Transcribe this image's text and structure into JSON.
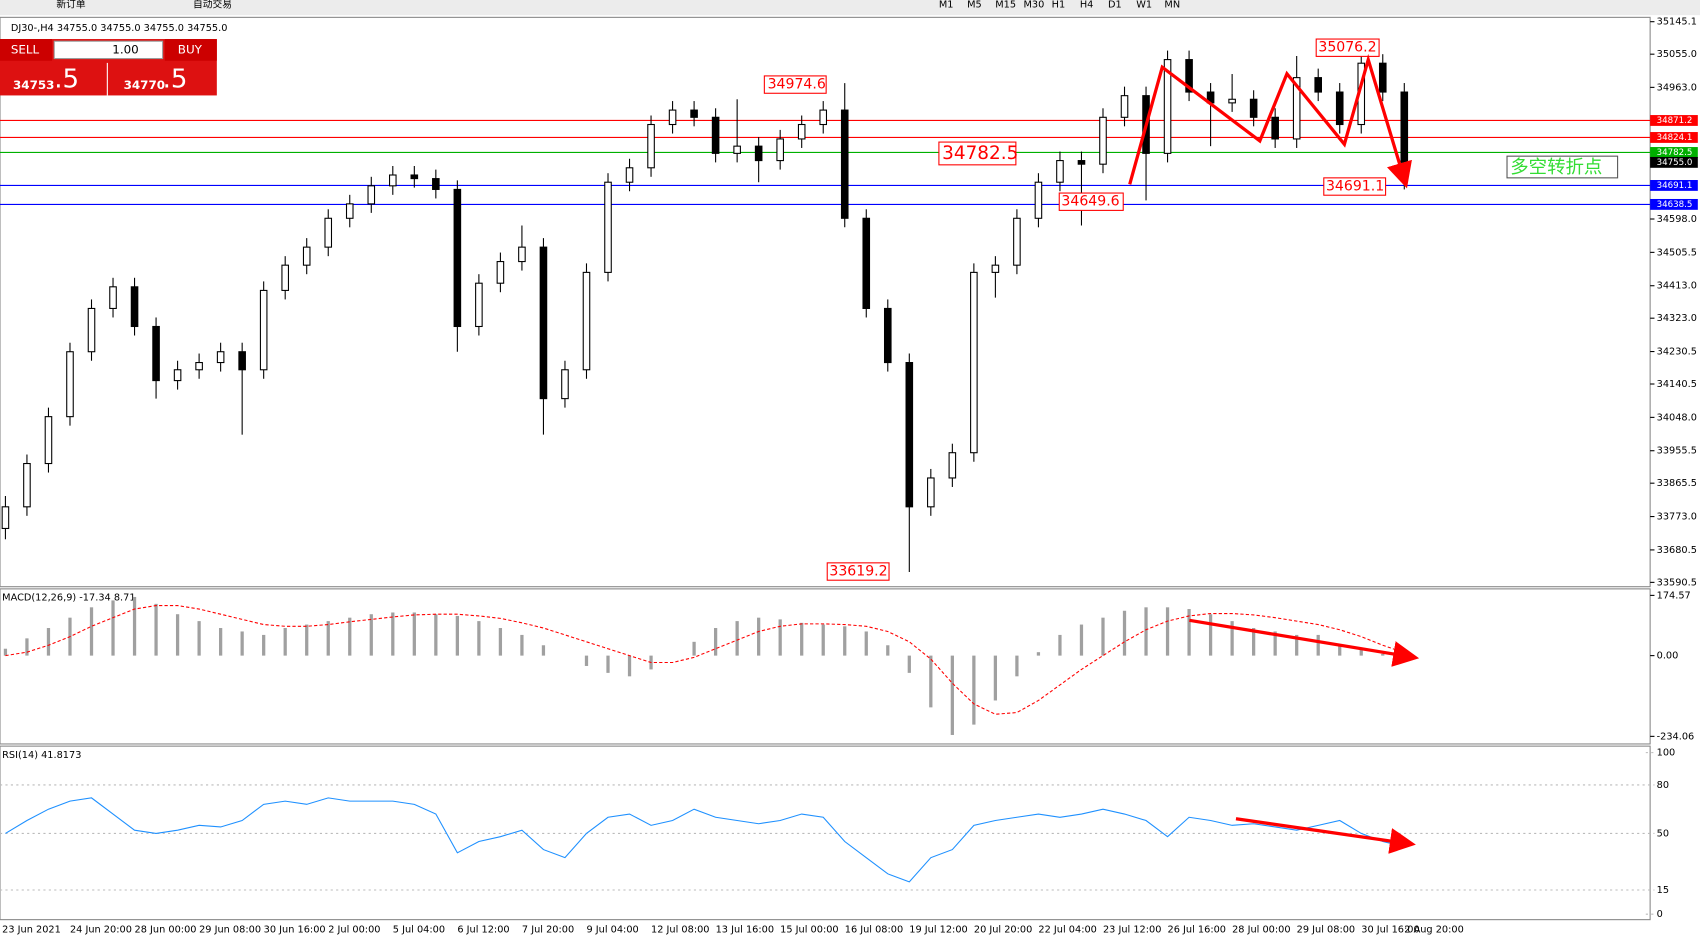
{
  "toolbar": {
    "buttons": [
      "新订单",
      "自动交易"
    ],
    "timeframes": [
      "M1",
      "M5",
      "M15",
      "M30",
      "H1",
      "H4",
      "D1",
      "W1",
      "MN"
    ]
  },
  "trade_panel": {
    "sell": "SELL",
    "buy": "BUY",
    "lots": "1.00",
    "bid_main": "34753",
    "bid_frac": ".5",
    "ask_main": "34770",
    "ask_frac": ".5"
  },
  "chart_data": [
    {
      "type": "candlestick",
      "title": "DJ30-,H4 34755.0 34755.0 34755.0 34755.0",
      "categories": [
        "23 Jun 2021",
        null,
        null,
        "24 Jun 20:00",
        null,
        null,
        "28 Jun 00:00",
        null,
        null,
        "29 Jun 08:00",
        null,
        null,
        "30 Jun 16:00",
        null,
        null,
        "2 Jul 00:00",
        null,
        null,
        "5 Jul 04:00",
        null,
        null,
        "6 Jul 12:00",
        null,
        null,
        "7 Jul 20:00",
        null,
        null,
        "9 Jul 04:00",
        null,
        null,
        "12 Jul 08:00",
        null,
        null,
        "13 Jul 16:00",
        null,
        null,
        "15 Jul 00:00",
        null,
        null,
        "16 Jul 08:00",
        null,
        null,
        "19 Jul 12:00",
        null,
        null,
        "20 Jul 20:00",
        null,
        null,
        "22 Jul 04:00",
        null,
        null,
        "23 Jul 12:00",
        null,
        null,
        "26 Jul 16:00",
        null,
        null,
        "28 Jul 00:00",
        null,
        null,
        "29 Jul 08:00",
        null,
        null,
        "30 Jul 16:00",
        null,
        "2 Aug 20:00"
      ],
      "candles": [
        [
          33740,
          33830,
          33710,
          33800
        ],
        [
          33800,
          33945,
          33775,
          33920
        ],
        [
          33920,
          34075,
          33895,
          34050
        ],
        [
          34050,
          34255,
          34025,
          34230
        ],
        [
          34230,
          34375,
          34205,
          34350
        ],
        [
          34350,
          34435,
          34325,
          34410
        ],
        [
          34410,
          34435,
          34275,
          34300
        ],
        [
          34300,
          34325,
          34100,
          34150
        ],
        [
          34150,
          34205,
          34125,
          34180
        ],
        [
          34180,
          34225,
          34155,
          34200
        ],
        [
          34200,
          34255,
          34175,
          34230
        ],
        [
          34230,
          34255,
          34000,
          34180
        ],
        [
          34180,
          34425,
          34155,
          34400
        ],
        [
          34400,
          34495,
          34375,
          34470
        ],
        [
          34470,
          34545,
          34445,
          34520
        ],
        [
          34520,
          34625,
          34495,
          34600
        ],
        [
          34600,
          34665,
          34575,
          34640
        ],
        [
          34640,
          34715,
          34615,
          34690
        ],
        [
          34690,
          34745,
          34665,
          34720
        ],
        [
          34720,
          34745,
          34685,
          34710
        ],
        [
          34710,
          34735,
          34655,
          34680
        ],
        [
          34680,
          34705,
          34230,
          34300
        ],
        [
          34300,
          34445,
          34275,
          34420
        ],
        [
          34420,
          34505,
          34395,
          34480
        ],
        [
          34480,
          34580,
          34455,
          34520
        ],
        [
          34520,
          34545,
          34000,
          34100
        ],
        [
          34100,
          34205,
          34075,
          34180
        ],
        [
          34180,
          34475,
          34155,
          34450
        ],
        [
          34450,
          34725,
          34425,
          34700
        ],
        [
          34700,
          34765,
          34675,
          34740
        ],
        [
          34740,
          34885,
          34715,
          34860
        ],
        [
          34860,
          34925,
          34835,
          34900
        ],
        [
          34900,
          34925,
          34855,
          34880
        ],
        [
          34880,
          34905,
          34755,
          34780
        ],
        [
          34780,
          34930,
          34755,
          34800
        ],
        [
          34800,
          34825,
          34700,
          34760
        ],
        [
          34760,
          34845,
          34735,
          34820
        ],
        [
          34820,
          34885,
          34795,
          34860
        ],
        [
          34860,
          34925,
          34835,
          34900
        ],
        [
          34900,
          34974.6,
          34575,
          34600
        ],
        [
          34600,
          34625,
          34325,
          34350
        ],
        [
          34350,
          34375,
          34175,
          34200
        ],
        [
          34200,
          34225,
          33619.2,
          33800
        ],
        [
          33800,
          33905,
          33775,
          33880
        ],
        [
          33880,
          33975,
          33855,
          33950
        ],
        [
          33950,
          34475,
          33925,
          34450
        ],
        [
          34450,
          34495,
          34380,
          34470
        ],
        [
          34470,
          34625,
          34445,
          34600
        ],
        [
          34600,
          34725,
          34575,
          34700
        ],
        [
          34700,
          34785,
          34675,
          34760
        ],
        [
          34760,
          34785,
          34580,
          34750
        ],
        [
          34750,
          34905,
          34725,
          34880
        ],
        [
          34880,
          34965,
          34855,
          34940
        ],
        [
          34940,
          34965,
          34649.6,
          34780
        ],
        [
          34780,
          35065,
          34755,
          35040
        ],
        [
          35040,
          35065,
          34925,
          34950
        ],
        [
          34950,
          34975,
          34800,
          34920
        ],
        [
          34920,
          35000,
          34895,
          34930
        ],
        [
          34930,
          34955,
          34855,
          34880
        ],
        [
          34880,
          34905,
          34795,
          34820
        ],
        [
          34820,
          35050,
          34795,
          34990
        ],
        [
          34990,
          35015,
          34925,
          34950
        ],
        [
          34950,
          34975,
          34835,
          34860
        ],
        [
          34860,
          35076.2,
          34835,
          35030
        ],
        [
          35030,
          35055,
          34925,
          34950
        ],
        [
          34950,
          34975,
          34680,
          34755
        ]
      ],
      "ylim": [
        33590.5,
        35145.1
      ],
      "yticks": [
        35145.1,
        {
          "value": 35055,
          "label": "35055.0"
        },
        {
          "value": 34963,
          "label": "34963.0"
        },
        {
          "value": 34598,
          "label": "34598.0"
        },
        34505.5,
        {
          "value": 34413,
          "label": "34413.0"
        },
        {
          "value": 34323,
          "label": "34323.0"
        },
        34230.5,
        34140.5,
        {
          "value": 34048,
          "label": "34048.0"
        },
        33955.5,
        33865.5,
        {
          "value": 33773,
          "label": "33773.0"
        },
        33680.5,
        33590.5
      ],
      "levels": [
        {
          "value": 34871.2,
          "color": "#ff0000"
        },
        {
          "value": 34824.1,
          "color": "#ff0000"
        },
        {
          "value": 34782.5,
          "color": "#00b000"
        },
        {
          "value": 34755,
          "label": "34755.0",
          "color": "#000000",
          "line": false
        },
        {
          "value": 34691.1,
          "color": "#0000ff"
        },
        {
          "value": 34638.5,
          "color": "#0000ff"
        }
      ],
      "annotations": [
        "34974.6",
        "34782.5",
        "35076.2",
        "34649.6",
        "34691.1",
        "33619.2",
        "多空转折点"
      ]
    },
    {
      "type": "macd",
      "title": "MACD(12,26,9) -17.34 8.71",
      "color": "#a0a0a0",
      "signal_color": "#ff0000",
      "values": [
        20,
        50,
        80,
        110,
        140,
        160,
        170,
        150,
        120,
        100,
        80,
        70,
        60,
        80,
        90,
        100,
        110,
        120,
        125,
        125,
        120,
        115,
        100,
        80,
        60,
        30,
        0,
        -30,
        -50,
        -60,
        -40,
        0,
        40,
        80,
        100,
        110,
        105,
        95,
        90,
        85,
        70,
        30,
        -50,
        -150,
        -230,
        -200,
        -130,
        -60,
        10,
        60,
        90,
        110,
        130,
        140,
        140,
        135,
        120,
        100,
        80,
        70,
        60,
        60,
        30,
        20,
        5,
        -17.34
      ],
      "signal": [
        0,
        10,
        30,
        55,
        85,
        110,
        135,
        145,
        145,
        135,
        120,
        105,
        90,
        85,
        85,
        90,
        98,
        105,
        112,
        118,
        120,
        120,
        115,
        108,
        95,
        80,
        60,
        40,
        20,
        0,
        -20,
        -20,
        -5,
        20,
        45,
        70,
        85,
        92,
        92,
        90,
        85,
        70,
        40,
        -10,
        -80,
        -140,
        -170,
        -165,
        -130,
        -85,
        -40,
        0,
        40,
        75,
        100,
        115,
        122,
        122,
        118,
        110,
        100,
        90,
        75,
        55,
        30,
        8.71
      ],
      "ylim": [
        -234.06,
        174.57
      ],
      "yticks": [
        174.57,
        {
          "value": 0,
          "label": "0.00"
        },
        -234.06
      ]
    },
    {
      "type": "line",
      "title": "RSI(14) 41.8173",
      "color": "#1e90ff",
      "values": [
        50,
        58,
        65,
        70,
        72,
        62,
        52,
        50,
        52,
        55,
        54,
        58,
        68,
        70,
        68,
        72,
        70,
        70,
        70,
        68,
        62,
        38,
        45,
        48,
        52,
        40,
        35,
        50,
        60,
        62,
        55,
        58,
        65,
        60,
        58,
        56,
        58,
        62,
        60,
        45,
        35,
        25,
        20,
        35,
        40,
        55,
        58,
        60,
        62,
        60,
        62,
        65,
        62,
        58,
        48,
        60,
        58,
        55,
        56,
        54,
        52,
        55,
        58,
        50,
        45,
        41.8173
      ],
      "ylim": [
        0,
        100
      ],
      "yticks": [
        100,
        80,
        50,
        15,
        0
      ]
    }
  ]
}
